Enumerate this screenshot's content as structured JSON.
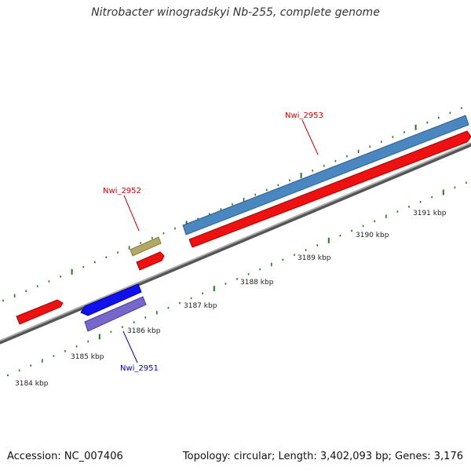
{
  "title": "Nitrobacter winogradskyi Nb-255, complete genome",
  "footer": {
    "accession": "Accession: NC_007406",
    "stats": "Topology: circular; Length: 3,402,093 bp; Genes: 3,176"
  },
  "colors": {
    "forward_gene": "#ee1111",
    "reverse_gene": "#1111ee",
    "reverse_gene_light": "#7766cc",
    "blue_gene": "#4a86c0",
    "olive_gene": "#b0aa66",
    "tick": "#227722",
    "backbone": "#777777",
    "label_red": "#cc0000",
    "label_blue": "#0000bb"
  },
  "scale_labels": [
    "3184 kbp",
    "3185 kbp",
    "3186 kbp",
    "3187 kbp",
    "3188 kbp",
    "3189 kbp",
    "3190 kbp",
    "3191 kbp"
  ],
  "gene_labels": [
    {
      "id": "nwi2953",
      "text": "Nwi_2953",
      "color": "#cc0000"
    },
    {
      "id": "nwi2952",
      "text": "Nwi_2952",
      "color": "#cc0000"
    },
    {
      "id": "nwi2951",
      "text": "Nwi_2951",
      "color": "#0000bb"
    }
  ]
}
